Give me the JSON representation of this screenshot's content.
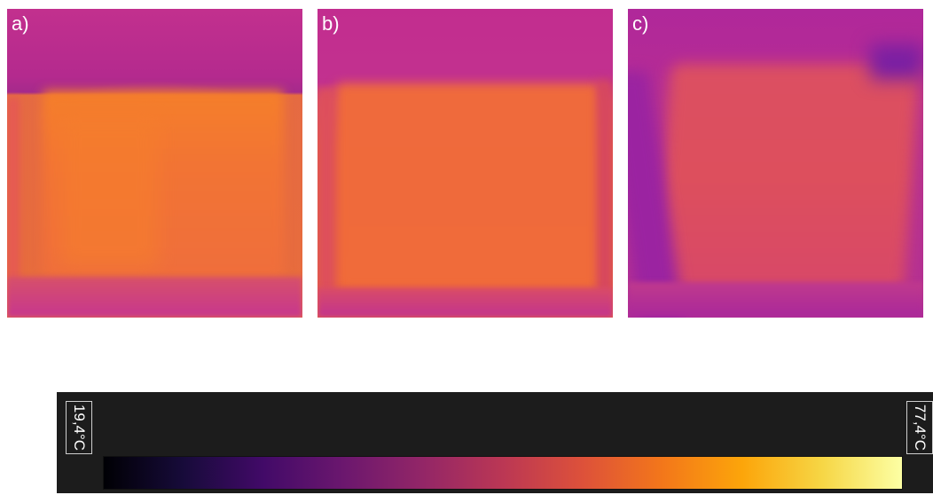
{
  "panels": [
    {
      "id": "a",
      "label": "a)"
    },
    {
      "id": "b",
      "label": "b)"
    },
    {
      "id": "c",
      "label": "c)"
    }
  ],
  "colormap": "inferno",
  "scale": {
    "min_label": "19,4°C",
    "max_label": "77,4°C",
    "min_value": 19.4,
    "max_value": 77.4,
    "unit": "°C"
  }
}
